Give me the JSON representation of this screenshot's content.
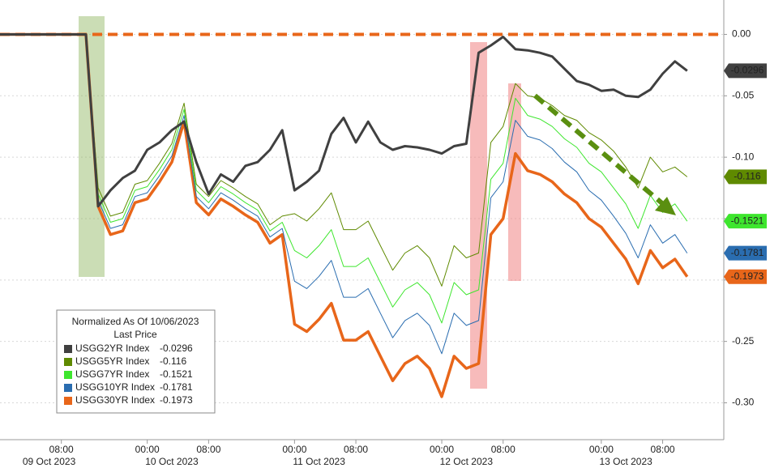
{
  "chart_data": {
    "type": "line",
    "legend_title": "Normalized As Of 10/06/2023",
    "legend_subtitle": "Last Price",
    "categories": [
      null,
      null,
      null,
      null,
      null,
      "08:00",
      null,
      null,
      null,
      null,
      null,
      null,
      "00:00",
      null,
      null,
      null,
      null,
      "08:00",
      null,
      null,
      null,
      null,
      null,
      null,
      "00:00",
      null,
      null,
      null,
      null,
      "08:00",
      null,
      null,
      null,
      null,
      null,
      null,
      "00:00",
      null,
      null,
      null,
      null,
      "08:00",
      null,
      null,
      null,
      null,
      null,
      null,
      null,
      "00:00",
      null,
      null,
      null,
      null,
      "08:00",
      null,
      null
    ],
    "x_dates": [
      null,
      null,
      null,
      null,
      "09 Oct 2023",
      null,
      null,
      null,
      null,
      null,
      null,
      null,
      null,
      null,
      "10 Oct 2023",
      null,
      null,
      null,
      null,
      null,
      null,
      null,
      null,
      null,
      null,
      null,
      "11 Oct 2023",
      null,
      null,
      null,
      null,
      null,
      null,
      null,
      null,
      null,
      null,
      null,
      "12 Oct 2023",
      null,
      null,
      null,
      null,
      null,
      null,
      null,
      null,
      null,
      null,
      null,
      null,
      "13 Oct 2023",
      null,
      null,
      null,
      null,
      null
    ],
    "ylim": [
      -0.33,
      0.028
    ],
    "yticks": [
      {
        "value": 0,
        "label": "0.00"
      },
      {
        "value": -0.05,
        "label": "-0.05"
      },
      {
        "value": -0.1,
        "label": "-0.10"
      },
      {
        "value": -0.15,
        "label": "-0.15"
      },
      {
        "value": -0.2,
        "label": "-0.20"
      },
      {
        "value": -0.25,
        "label": "-0.25"
      },
      {
        "value": -0.3,
        "label": "-0.30"
      }
    ],
    "grid": true,
    "hline": 0,
    "series": [
      {
        "name": "USGG2YR Index",
        "color": "#404040",
        "width": 3,
        "values": [
          0,
          0,
          0,
          0,
          0,
          0,
          0,
          0,
          -0.14,
          -0.127,
          -0.117,
          -0.111,
          -0.094,
          -0.088,
          -0.078,
          -0.071,
          -0.104,
          -0.13,
          -0.114,
          -0.12,
          -0.107,
          -0.104,
          -0.094,
          -0.078,
          -0.127,
          -0.12,
          -0.111,
          -0.081,
          -0.068,
          -0.088,
          -0.071,
          -0.088,
          -0.094,
          -0.091,
          -0.092,
          -0.094,
          -0.097,
          -0.091,
          -0.089,
          -0.015,
          -0.009,
          -0.002,
          -0.012,
          -0.013,
          -0.015,
          -0.018,
          -0.028,
          -0.038,
          -0.041,
          -0.046,
          -0.045,
          -0.05,
          -0.051,
          -0.045,
          -0.032,
          -0.022,
          -0.0296
        ]
      },
      {
        "name": "USGG5YR Index",
        "color": "#5f8a00",
        "width": 1,
        "values": [
          0,
          0,
          0,
          0,
          0,
          0,
          0,
          0,
          -0.125,
          -0.148,
          -0.145,
          -0.122,
          -0.119,
          -0.105,
          -0.089,
          -0.056,
          -0.122,
          -0.132,
          -0.119,
          -0.125,
          -0.132,
          -0.138,
          -0.155,
          -0.148,
          -0.146,
          -0.152,
          -0.142,
          -0.129,
          -0.159,
          -0.159,
          -0.152,
          -0.172,
          -0.192,
          -0.178,
          -0.172,
          -0.182,
          -0.205,
          -0.172,
          -0.182,
          -0.178,
          -0.088,
          -0.075,
          -0.04,
          -0.05,
          -0.052,
          -0.058,
          -0.066,
          -0.07,
          -0.08,
          -0.086,
          -0.095,
          -0.108,
          -0.125,
          -0.1,
          -0.112,
          -0.108,
          -0.116
        ]
      },
      {
        "name": "USGG7YR Index",
        "color": "#3ee62e",
        "width": 1,
        "values": [
          0,
          0,
          0,
          0,
          0,
          0,
          0,
          0,
          -0.13,
          -0.153,
          -0.15,
          -0.127,
          -0.124,
          -0.11,
          -0.094,
          -0.061,
          -0.127,
          -0.137,
          -0.124,
          -0.13,
          -0.137,
          -0.143,
          -0.16,
          -0.153,
          -0.176,
          -0.182,
          -0.172,
          -0.159,
          -0.189,
          -0.189,
          -0.182,
          -0.202,
          -0.222,
          -0.208,
          -0.202,
          -0.212,
          -0.235,
          -0.202,
          -0.212,
          -0.208,
          -0.118,
          -0.105,
          -0.052,
          -0.066,
          -0.069,
          -0.075,
          -0.085,
          -0.092,
          -0.105,
          -0.112,
          -0.125,
          -0.138,
          -0.158,
          -0.131,
          -0.145,
          -0.138,
          -0.1521
        ]
      },
      {
        "name": "USGG10YR Index",
        "color": "#2a6db0",
        "width": 1,
        "values": [
          0,
          0,
          0,
          0,
          0,
          0,
          0,
          0,
          -0.135,
          -0.158,
          -0.155,
          -0.132,
          -0.129,
          -0.115,
          -0.099,
          -0.066,
          -0.132,
          -0.142,
          -0.129,
          -0.135,
          -0.142,
          -0.148,
          -0.165,
          -0.158,
          -0.201,
          -0.207,
          -0.197,
          -0.184,
          -0.214,
          -0.214,
          -0.207,
          -0.227,
          -0.247,
          -0.233,
          -0.227,
          -0.237,
          -0.26,
          -0.227,
          -0.237,
          -0.233,
          -0.133,
          -0.12,
          -0.07,
          -0.083,
          -0.086,
          -0.093,
          -0.104,
          -0.112,
          -0.127,
          -0.135,
          -0.148,
          -0.162,
          -0.182,
          -0.155,
          -0.17,
          -0.163,
          -0.1781
        ]
      },
      {
        "name": "USGG30YR Index",
        "color": "#e8661a",
        "width": 3.5,
        "values": [
          0,
          0,
          0,
          0,
          0,
          0,
          0,
          0,
          -0.14,
          -0.163,
          -0.16,
          -0.137,
          -0.134,
          -0.12,
          -0.104,
          -0.071,
          -0.137,
          -0.147,
          -0.134,
          -0.14,
          -0.147,
          -0.153,
          -0.17,
          -0.163,
          -0.236,
          -0.242,
          -0.232,
          -0.219,
          -0.249,
          -0.249,
          -0.242,
          -0.262,
          -0.282,
          -0.268,
          -0.262,
          -0.272,
          -0.295,
          -0.262,
          -0.272,
          -0.268,
          -0.163,
          -0.15,
          -0.097,
          -0.111,
          -0.114,
          -0.12,
          -0.13,
          -0.137,
          -0.15,
          -0.157,
          -0.17,
          -0.183,
          -0.203,
          -0.176,
          -0.19,
          -0.183,
          -0.1973
        ]
      }
    ]
  }
}
